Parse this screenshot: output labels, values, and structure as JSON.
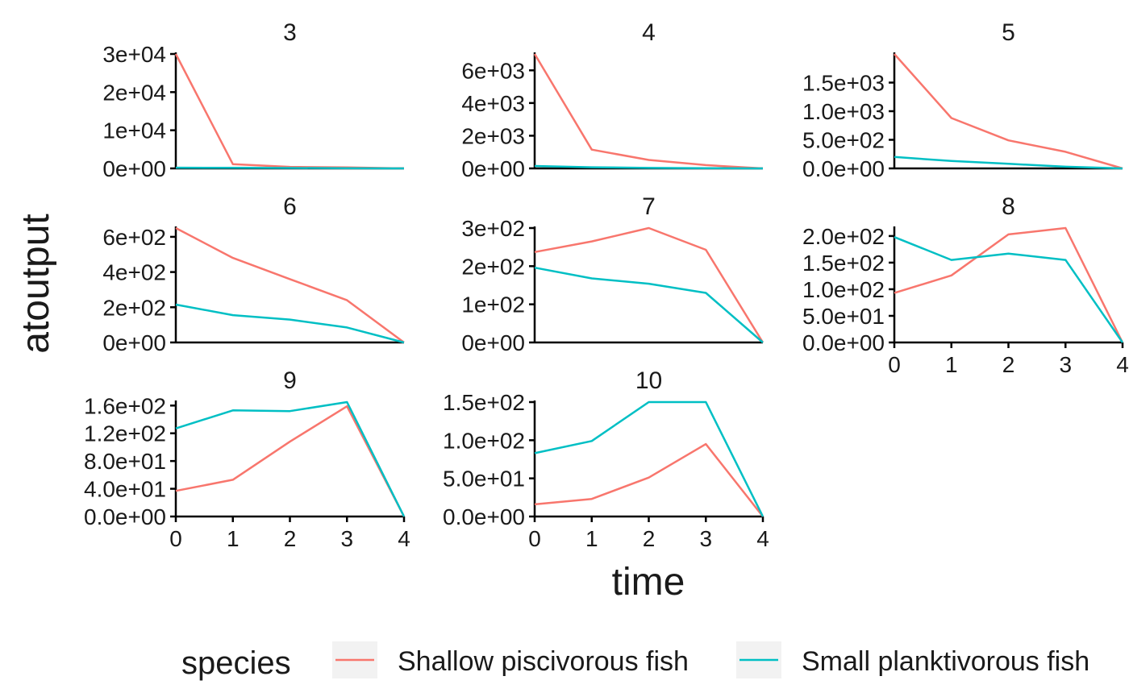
{
  "chart_data": {
    "type": "line",
    "xlabel": "time",
    "ylabel": "atoutput",
    "legend": {
      "title": "species",
      "position": "bottom"
    },
    "series_names": [
      "Shallow piscivorous fish",
      "Small planktivorous fish"
    ],
    "colors": {
      "Shallow piscivorous fish": "#F8766D",
      "Small planktivorous fish": "#00BFC4"
    },
    "x": [
      0,
      1,
      2,
      3,
      4
    ],
    "x_ticks": [
      "0",
      "1",
      "2",
      "3",
      "4"
    ],
    "panels": [
      {
        "title": "3",
        "ylim": [
          0,
          30000
        ],
        "y_ticks": [
          {
            "v": 0,
            "label": "0e+00"
          },
          {
            "v": 10000,
            "label": "1e+04"
          },
          {
            "v": 20000,
            "label": "2e+04"
          },
          {
            "v": 30000,
            "label": "3e+04"
          }
        ],
        "series": [
          {
            "name": "Shallow piscivorous fish",
            "values": [
              30000,
              1100,
              400,
              250,
              0
            ]
          },
          {
            "name": "Small planktivorous fish",
            "values": [
              200,
              150,
              100,
              60,
              0
            ]
          }
        ]
      },
      {
        "title": "4",
        "ylim": [
          0,
          7000
        ],
        "y_ticks": [
          {
            "v": 0,
            "label": "0e+00"
          },
          {
            "v": 2000,
            "label": "2e+03"
          },
          {
            "v": 4000,
            "label": "4e+03"
          },
          {
            "v": 6000,
            "label": "6e+03"
          }
        ],
        "series": [
          {
            "name": "Shallow piscivorous fish",
            "values": [
              7000,
              1150,
              520,
              200,
              0
            ]
          },
          {
            "name": "Small planktivorous fish",
            "values": [
              150,
              70,
              30,
              15,
              0
            ]
          }
        ]
      },
      {
        "title": "5",
        "ylim": [
          0,
          2000
        ],
        "y_ticks": [
          {
            "v": 0,
            "label": "0.0e+00"
          },
          {
            "v": 500,
            "label": "5.0e+02"
          },
          {
            "v": 1000,
            "label": "1.0e+03"
          },
          {
            "v": 1500,
            "label": "1.5e+03"
          }
        ],
        "series": [
          {
            "name": "Shallow piscivorous fish",
            "values": [
              2000,
              880,
              490,
              290,
              0
            ]
          },
          {
            "name": "Small planktivorous fish",
            "values": [
              200,
              130,
              80,
              30,
              0
            ]
          }
        ]
      },
      {
        "title": "6",
        "ylim": [
          0,
          650
        ],
        "y_ticks": [
          {
            "v": 0,
            "label": "0e+00"
          },
          {
            "v": 200,
            "label": "2e+02"
          },
          {
            "v": 400,
            "label": "4e+02"
          },
          {
            "v": 600,
            "label": "6e+02"
          }
        ],
        "series": [
          {
            "name": "Shallow piscivorous fish",
            "values": [
              650,
              480,
              360,
              240,
              0
            ]
          },
          {
            "name": "Small planktivorous fish",
            "values": [
              215,
              155,
              130,
              85,
              0
            ]
          }
        ]
      },
      {
        "title": "7",
        "ylim": [
          0,
          300
        ],
        "y_ticks": [
          {
            "v": 0,
            "label": "0e+00"
          },
          {
            "v": 100,
            "label": "1e+02"
          },
          {
            "v": 200,
            "label": "2e+02"
          },
          {
            "v": 300,
            "label": "3e+02"
          }
        ],
        "series": [
          {
            "name": "Shallow piscivorous fish",
            "values": [
              237,
              265,
              300,
              243,
              0
            ]
          },
          {
            "name": "Small planktivorous fish",
            "values": [
              196,
              168,
              154,
              130,
              0
            ]
          }
        ]
      },
      {
        "title": "8",
        "ylim": [
          0,
          215
        ],
        "y_ticks": [
          {
            "v": 0,
            "label": "0.0e+00"
          },
          {
            "v": 50,
            "label": "5.0e+01"
          },
          {
            "v": 100,
            "label": "1.0e+02"
          },
          {
            "v": 150,
            "label": "1.5e+02"
          },
          {
            "v": 200,
            "label": "2.0e+02"
          }
        ],
        "series": [
          {
            "name": "Shallow piscivorous fish",
            "values": [
              93,
              126,
              203,
              215,
              0
            ]
          },
          {
            "name": "Small planktivorous fish",
            "values": [
              198,
              155,
              167,
              155,
              0
            ]
          }
        ]
      },
      {
        "title": "9",
        "ylim": [
          0,
          165
        ],
        "y_ticks": [
          {
            "v": 0,
            "label": "0.0e+00"
          },
          {
            "v": 40,
            "label": "4.0e+01"
          },
          {
            "v": 80,
            "label": "8.0e+01"
          },
          {
            "v": 120,
            "label": "1.2e+02"
          },
          {
            "v": 160,
            "label": "1.6e+02"
          }
        ],
        "series": [
          {
            "name": "Shallow piscivorous fish",
            "values": [
              37,
              53,
              108,
              159,
              0
            ]
          },
          {
            "name": "Small planktivorous fish",
            "values": [
              127,
              153,
              152,
              165,
              0
            ]
          }
        ]
      },
      {
        "title": "10",
        "ylim": [
          0,
          150
        ],
        "y_ticks": [
          {
            "v": 0,
            "label": "0.0e+00"
          },
          {
            "v": 50,
            "label": "5.0e+01"
          },
          {
            "v": 100,
            "label": "1.0e+02"
          },
          {
            "v": 150,
            "label": "1.5e+02"
          }
        ],
        "series": [
          {
            "name": "Shallow piscivorous fish",
            "values": [
              16,
              23,
              51,
              95,
              0
            ]
          },
          {
            "name": "Small planktivorous fish",
            "values": [
              83,
              99,
              150,
              150,
              0
            ]
          }
        ]
      }
    ]
  }
}
